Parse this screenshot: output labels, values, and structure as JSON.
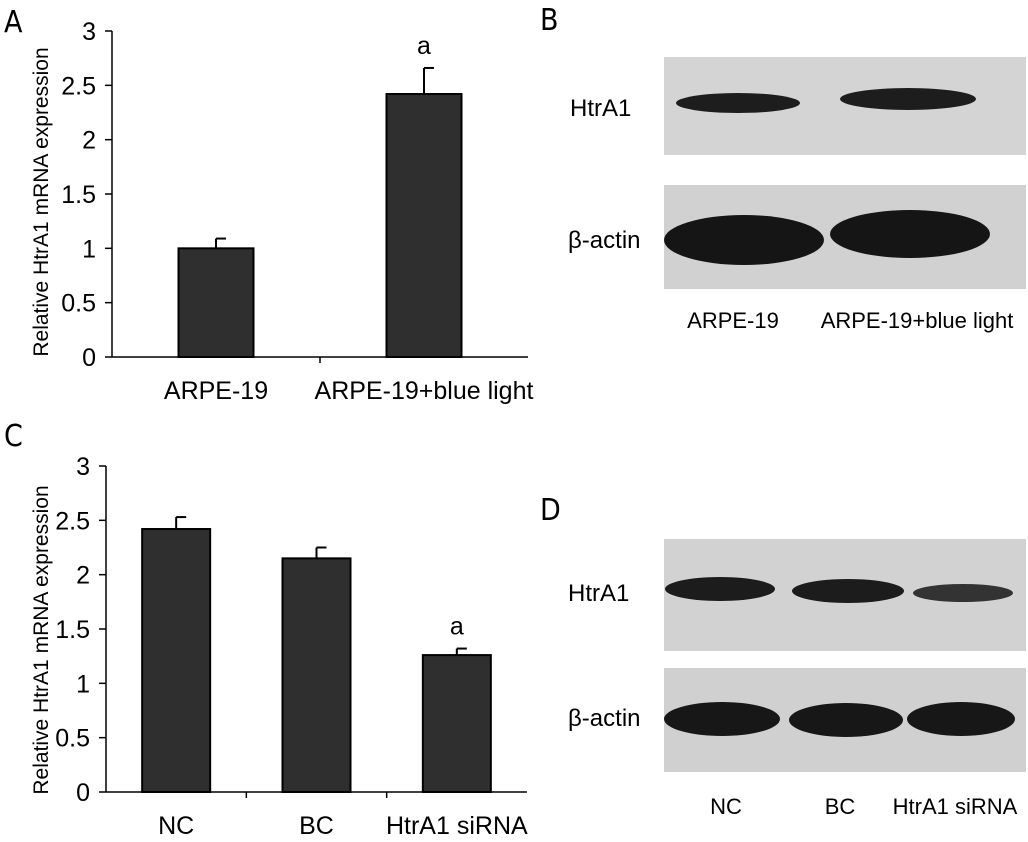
{
  "panels": {
    "A": {
      "letter": "A"
    },
    "B": {
      "letter": "B",
      "rows": [
        "HtrA1",
        "β-actin"
      ],
      "lanes": [
        "ARPE-19",
        "ARPE-19+blue light"
      ]
    },
    "C": {
      "letter": "C"
    },
    "D": {
      "letter": "D",
      "rows": [
        "HtrA1",
        "β-actin"
      ],
      "lanes": [
        "NC",
        "BC",
        "HtrA1 siRNA"
      ]
    }
  },
  "colors": {
    "bar": "#2f2f2f",
    "blot_bg": "#d3d3d3",
    "band": "#1a1a1a"
  },
  "chart_data": [
    {
      "type": "bar",
      "panel": "A",
      "categories": [
        "ARPE-19",
        "ARPE-19+blue light"
      ],
      "values": [
        1.0,
        2.42
      ],
      "error": [
        0.09,
        0.24
      ],
      "annotations": [
        "",
        "a"
      ],
      "ylabel": "Relative HtrA1 mRNA expression",
      "ylim": [
        0,
        3
      ],
      "yticks": [
        "0",
        "0.5",
        "1",
        "1.5",
        "2",
        "2.5",
        "3"
      ],
      "grid": false
    },
    {
      "type": "bar",
      "panel": "C",
      "categories": [
        "NC",
        "BC",
        "HtrA1  siRNA"
      ],
      "values": [
        2.42,
        2.15,
        1.26
      ],
      "error": [
        0.11,
        0.1,
        0.06
      ],
      "annotations": [
        "",
        "",
        "a"
      ],
      "ylabel": "Relative HtrA1 mRNA expression",
      "ylim": [
        0,
        3
      ],
      "yticks": [
        "0",
        "0.5",
        "1",
        "1.5",
        "2",
        "2.5",
        "3"
      ],
      "grid": false
    }
  ]
}
